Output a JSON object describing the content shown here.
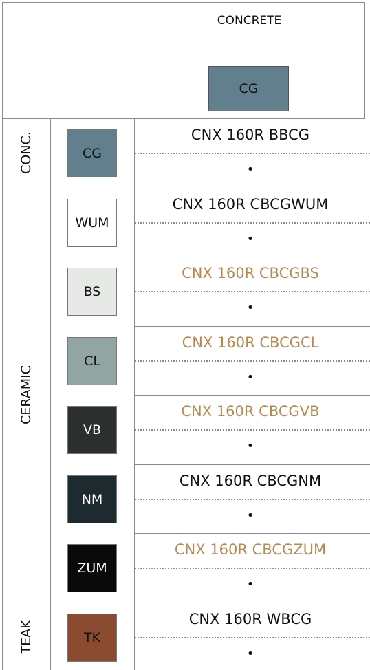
{
  "header": {
    "title": "CONCRETE",
    "swatch": {
      "label": "CG",
      "color": "#627f8e",
      "text_color": "#111"
    }
  },
  "groups": [
    {
      "label": "CONC.",
      "rows": [
        {
          "swatch": {
            "label": "CG",
            "color": "#627f8e",
            "text_color": "#111"
          },
          "code": "CNX 160R BBCG",
          "code_color": "#111",
          "bullet": "•"
        }
      ]
    },
    {
      "label": "CERAMIC",
      "rows": [
        {
          "swatch": {
            "label": "WUM",
            "color": "#ffffff",
            "text_color": "#111"
          },
          "code": "CNX 160R CBCGWUM",
          "code_color": "#111",
          "bullet": "•"
        },
        {
          "swatch": {
            "label": "BS",
            "color": "#e6e9e6",
            "text_color": "#111"
          },
          "code": "CNX 160R CBCGBS",
          "code_color": "#b9884f",
          "bullet": "•"
        },
        {
          "swatch": {
            "label": "CL",
            "color": "#91a6a2",
            "text_color": "#111"
          },
          "code": "CNX 160R CBCGCL",
          "code_color": "#b9884f",
          "bullet": "•"
        },
        {
          "swatch": {
            "label": "VB",
            "color": "#2b302e",
            "text_color": "#fff"
          },
          "code": "CNX 160R CBCGVB",
          "code_color": "#b9884f",
          "bullet": "•"
        },
        {
          "swatch": {
            "label": "NM",
            "color": "#1d2a30",
            "text_color": "#fff"
          },
          "code": "CNX 160R CBCGNM",
          "code_color": "#111",
          "bullet": "•"
        },
        {
          "swatch": {
            "label": "ZUM",
            "color": "#0a0a0b",
            "text_color": "#fff"
          },
          "code": "CNX 160R CBCGZUM",
          "code_color": "#b9884f",
          "bullet": "•"
        }
      ]
    },
    {
      "label": "TEAK",
      "rows": [
        {
          "swatch": {
            "label": "TK",
            "color": "#8b4b31",
            "text_color": "#111"
          },
          "code": "CNX 160R WBCG",
          "code_color": "#111",
          "bullet": "•"
        }
      ]
    }
  ]
}
